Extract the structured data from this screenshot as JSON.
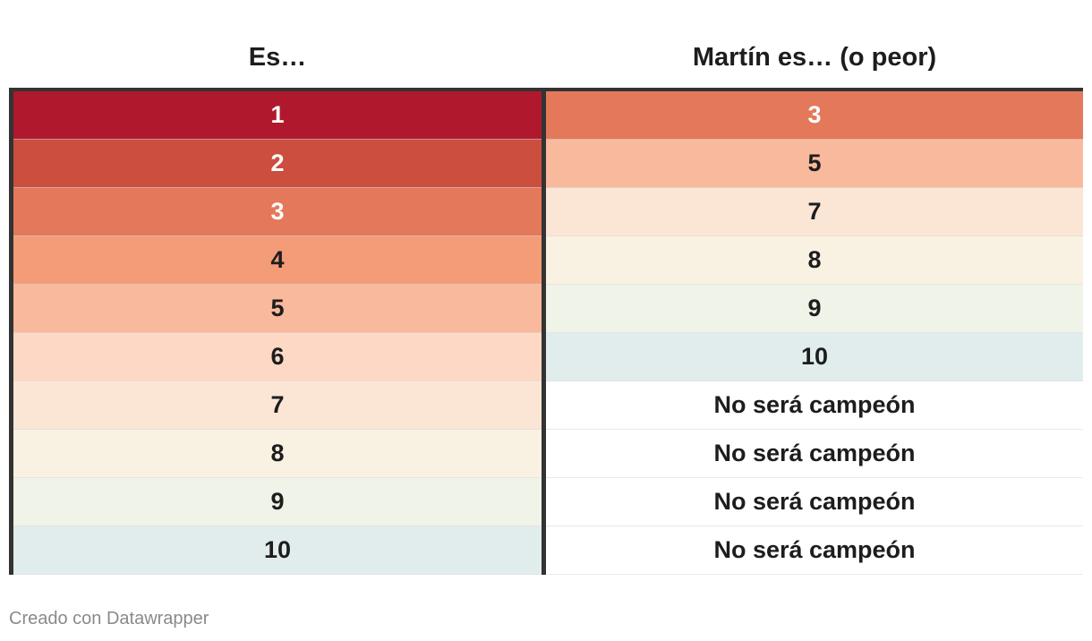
{
  "chart_data": {
    "type": "table",
    "columns": [
      "Es…",
      "Martín es… (o peor)"
    ],
    "rows": [
      {
        "es": "1",
        "martin": "3"
      },
      {
        "es": "2",
        "martin": "5"
      },
      {
        "es": "3",
        "martin": "7"
      },
      {
        "es": "4",
        "martin": "8"
      },
      {
        "es": "5",
        "martin": "9"
      },
      {
        "es": "6",
        "martin": "10"
      },
      {
        "es": "7",
        "martin": "No será campeón"
      },
      {
        "es": "8",
        "martin": "No será campeón"
      },
      {
        "es": "9",
        "martin": "No será campeón"
      },
      {
        "es": "10",
        "martin": "No será campeón"
      }
    ],
    "color_scale": {
      "1": "#b0192d",
      "2": "#cb4e3f",
      "3": "#e4785a",
      "4": "#f49c78",
      "5": "#f9b99c",
      "6": "#fdd9c5",
      "7": "#fbe6d6",
      "8": "#f9f2e3",
      "9": "#eff3e8",
      "10": "#e1eded",
      "No será campeón": "#ffffff"
    },
    "light_text_values": [
      "1",
      "2",
      "3"
    ]
  },
  "footer": {
    "credit": "Creado con Datawrapper"
  }
}
